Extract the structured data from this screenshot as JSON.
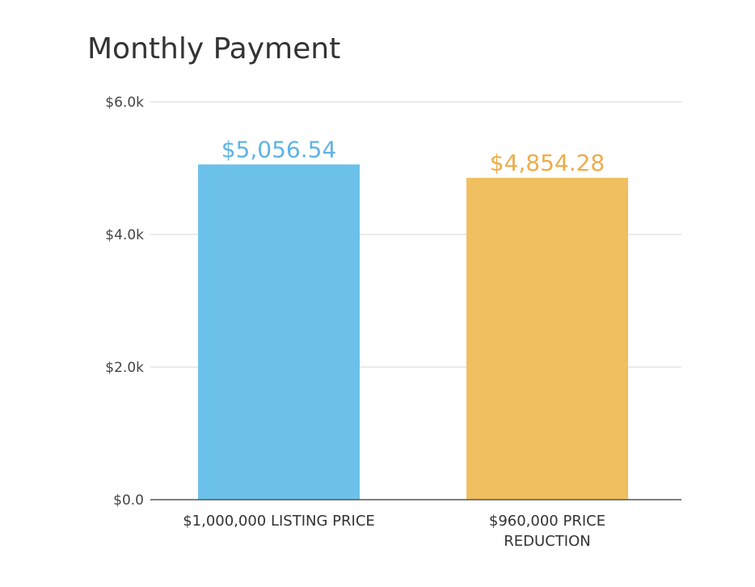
{
  "chart_data": {
    "type": "bar",
    "title": "Monthly Payment",
    "categories": [
      [
        "$1,000,000 LISTING PRICE"
      ],
      [
        "$960,000 PRICE",
        "REDUCTION"
      ]
    ],
    "values": [
      5056.54,
      4854.28
    ],
    "data_labels": [
      "$5,056.54",
      "$4,854.28"
    ],
    "colors": [
      "#6cc1ea",
      "#f0bf60"
    ],
    "label_colors": [
      "#5fb4e3",
      "#eeac48"
    ],
    "ylim": [
      0,
      6000
    ],
    "yticks": [
      {
        "value": 0,
        "label": "$0.0"
      },
      {
        "value": 2000,
        "label": "$2.0k"
      },
      {
        "value": 4000,
        "label": "$4.0k"
      },
      {
        "value": 6000,
        "label": "$6.0k"
      }
    ],
    "xlabel": "",
    "ylabel": "",
    "grid": true,
    "legend": "none"
  }
}
